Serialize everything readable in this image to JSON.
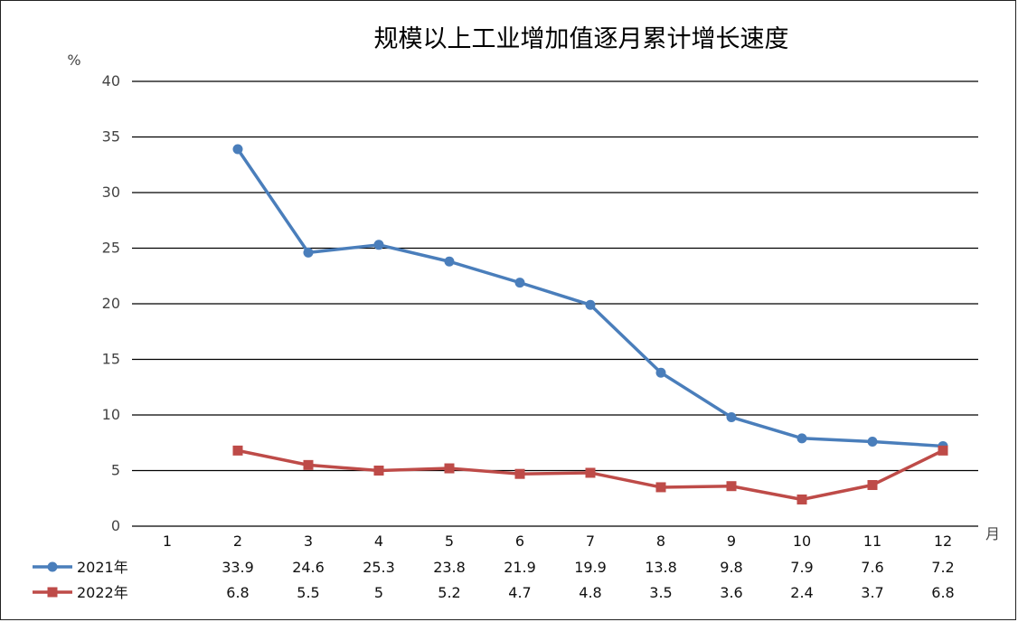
{
  "chart_data": {
    "type": "line",
    "title": "规模以上工业增加值逐月累计增长速度",
    "ylabel": "%",
    "xlabel": "月",
    "ylim": [
      0,
      40
    ],
    "yticks": [
      0,
      5,
      10,
      15,
      20,
      25,
      30,
      35,
      40
    ],
    "categories": [
      "1",
      "2",
      "3",
      "4",
      "5",
      "6",
      "7",
      "8",
      "9",
      "10",
      "11",
      "12"
    ],
    "grid": true,
    "legend": "bottom-left table",
    "series": [
      {
        "name": "2021年",
        "color": "#4a7ebb",
        "marker": "circle",
        "values": [
          null,
          33.9,
          24.6,
          25.3,
          23.8,
          21.9,
          19.9,
          13.8,
          9.8,
          7.9,
          7.6,
          7.2
        ],
        "labels": [
          "",
          "33.9",
          "24.6",
          "25.3",
          "23.8",
          "21.9",
          "19.9",
          "13.8",
          "9.8",
          "7.9",
          "7.6",
          "7.2"
        ]
      },
      {
        "name": "2022年",
        "color": "#be4b48",
        "marker": "square",
        "values": [
          null,
          6.8,
          5.5,
          5,
          5.2,
          4.7,
          4.8,
          3.5,
          3.6,
          2.4,
          3.7,
          6.8
        ],
        "labels": [
          "",
          "6.8",
          "5.5",
          "5",
          "5.2",
          "4.7",
          "4.8",
          "3.5",
          "3.6",
          "2.4",
          "3.7",
          "6.8"
        ]
      }
    ]
  }
}
